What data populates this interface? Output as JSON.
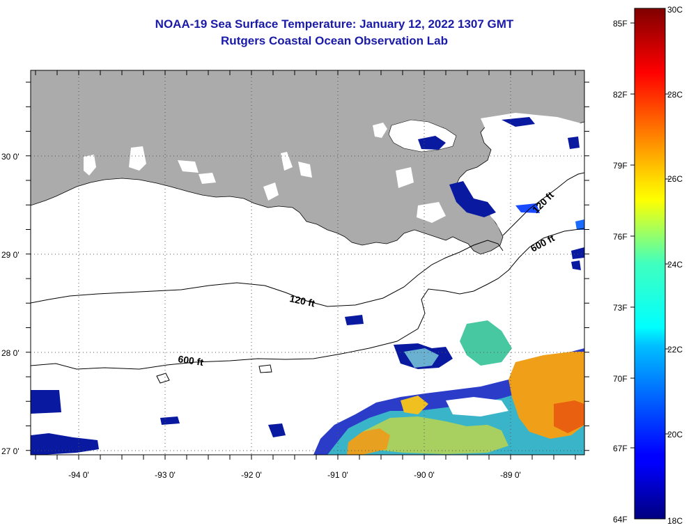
{
  "title": "NOAA-19 Sea Surface Temperature:  January 12, 2022 1307 GMT",
  "subtitle": "Rutgers Coastal Ocean Observation Lab",
  "map": {
    "lat_labels": [
      "30 0'",
      "29 0'",
      "28 0'",
      "27 0'"
    ],
    "lon_labels": [
      "-94 0'",
      "-93 0'",
      "-92 0'",
      "-91 0'",
      "-90 0'",
      "-89 0'"
    ],
    "contours": [
      {
        "depth": "120 ft",
        "label": "120 ft"
      },
      {
        "depth": "600 ft",
        "label": "600 ft"
      },
      {
        "depth": "120 ft",
        "label": "120 ft"
      },
      {
        "depth": "600 ft",
        "label": "600 ft"
      }
    ],
    "colors": {
      "land": "#ababab",
      "cloud": "#ffffff",
      "grid": "#000000"
    }
  },
  "colorbar": {
    "fahrenheit_labels": [
      "85F",
      "82F",
      "79F",
      "76F",
      "73F",
      "70F",
      "67F",
      "64F"
    ],
    "celsius_labels": [
      "30C",
      "28C",
      "26C",
      "24C",
      "22C",
      "20C",
      "18C"
    ],
    "range_c": [
      18,
      30
    ],
    "range_f": [
      64,
      86
    ],
    "colormap": "jet"
  }
}
